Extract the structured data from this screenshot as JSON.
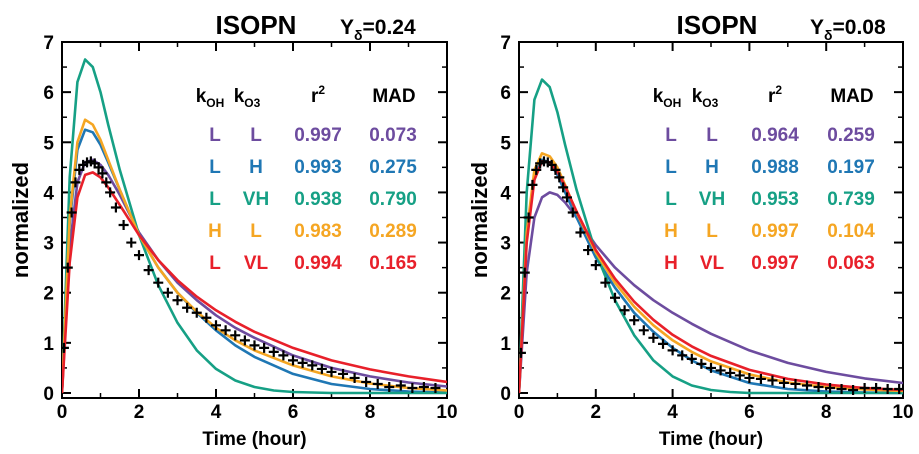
{
  "colors": {
    "purple": "#6d4c9f",
    "blue": "#1f77b4",
    "green": "#16a085",
    "orange": "#f5a623",
    "red": "#e8202a",
    "observed": "#000000"
  },
  "table_headers": {
    "koh": "k",
    "koh_sub": "OH",
    "ko3": "k",
    "ko3_sub": "O3",
    "r2": "r",
    "r2_sup": "2",
    "mad": "MAD"
  },
  "chart_data": [
    {
      "type": "line",
      "title": "ISOPN",
      "annotation": {
        "main": "Y",
        "sub": "δ",
        "value": "=0.24"
      },
      "xlabel": "Time (hour)",
      "ylabel": "normalized",
      "xlim": [
        0,
        10
      ],
      "ylim": [
        -0.1,
        7
      ],
      "x_ticks": [
        "0",
        "2",
        "4",
        "6",
        "8",
        "10"
      ],
      "y_ticks": [
        "0",
        "1",
        "2",
        "3",
        "4",
        "5",
        "6",
        "7"
      ],
      "observed_marker": "+",
      "observed": {
        "x": [
          0.05,
          0.15,
          0.25,
          0.35,
          0.45,
          0.55,
          0.65,
          0.75,
          0.85,
          0.95,
          1.05,
          1.15,
          1.25,
          1.4,
          1.6,
          1.8,
          2.0,
          2.25,
          2.5,
          2.75,
          3.0,
          3.25,
          3.5,
          3.75,
          4.0,
          4.25,
          4.5,
          4.75,
          5.0,
          5.25,
          5.5,
          5.75,
          6.0,
          6.25,
          6.5,
          6.75,
          7.0,
          7.3,
          7.6,
          7.9,
          8.2,
          8.5,
          8.8,
          9.1,
          9.4,
          9.7
        ],
        "y": [
          0.9,
          2.5,
          3.6,
          4.2,
          4.45,
          4.55,
          4.6,
          4.62,
          4.58,
          4.5,
          4.38,
          4.2,
          4.0,
          3.7,
          3.35,
          3.0,
          2.75,
          2.45,
          2.2,
          2.0,
          1.85,
          1.7,
          1.6,
          1.5,
          1.35,
          1.25,
          1.15,
          1.05,
          0.95,
          0.9,
          0.82,
          0.75,
          0.65,
          0.6,
          0.55,
          0.48,
          0.42,
          0.38,
          0.3,
          0.22,
          0.18,
          0.12,
          0.15,
          0.1,
          0.12,
          0.1
        ]
      },
      "series": [
        {
          "name": "L L",
          "color_key": "purple",
          "koh": "L",
          "ko3": "L",
          "r2": "0.997",
          "mad": "0.073",
          "x": [
            0,
            0.2,
            0.4,
            0.6,
            0.8,
            1.0,
            1.2,
            1.5,
            2.0,
            2.5,
            3.0,
            3.5,
            4.0,
            4.5,
            5.0,
            6.0,
            7.0,
            8.0,
            9.0,
            10.0
          ],
          "y": [
            0,
            2.9,
            4.2,
            4.6,
            4.65,
            4.55,
            4.35,
            3.95,
            3.2,
            2.65,
            2.2,
            1.85,
            1.55,
            1.3,
            1.1,
            0.75,
            0.5,
            0.33,
            0.21,
            0.13
          ]
        },
        {
          "name": "L H",
          "color_key": "blue",
          "koh": "L",
          "ko3": "H",
          "r2": "0.993",
          "mad": "0.275",
          "x": [
            0,
            0.2,
            0.4,
            0.6,
            0.8,
            1.0,
            1.2,
            1.5,
            2.0,
            2.5,
            3.0,
            3.5,
            4.0,
            4.5,
            5.0,
            6.0,
            7.0,
            8.0,
            9.0,
            10.0
          ],
          "y": [
            0,
            3.4,
            4.85,
            5.25,
            5.2,
            4.95,
            4.6,
            4.05,
            3.15,
            2.5,
            2.0,
            1.6,
            1.25,
            0.95,
            0.72,
            0.38,
            0.18,
            0.08,
            0.03,
            0.01
          ]
        },
        {
          "name": "L VH",
          "color_key": "green",
          "koh": "L",
          "ko3": "VH",
          "r2": "0.938",
          "mad": "0.790",
          "x": [
            0,
            0.2,
            0.4,
            0.6,
            0.8,
            1.0,
            1.2,
            1.5,
            2.0,
            2.5,
            3.0,
            3.5,
            4.0,
            4.5,
            5.0,
            5.5,
            6.0,
            7.0,
            8.0,
            10.0
          ],
          "y": [
            0,
            4.3,
            6.2,
            6.65,
            6.5,
            6.0,
            5.35,
            4.45,
            3.15,
            2.15,
            1.4,
            0.85,
            0.48,
            0.25,
            0.12,
            0.05,
            0.02,
            0.0,
            0.0,
            0.0
          ]
        },
        {
          "name": "H L",
          "color_key": "orange",
          "koh": "H",
          "ko3": "L",
          "r2": "0.983",
          "mad": "0.289",
          "x": [
            0,
            0.2,
            0.4,
            0.6,
            0.8,
            1.0,
            1.2,
            1.5,
            2.0,
            2.5,
            3.0,
            3.5,
            4.0,
            4.5,
            5.0,
            6.0,
            7.0,
            8.0,
            9.0,
            10.0
          ],
          "y": [
            0,
            3.5,
            5.0,
            5.45,
            5.35,
            5.05,
            4.65,
            4.05,
            3.15,
            2.5,
            2.0,
            1.62,
            1.3,
            1.05,
            0.85,
            0.55,
            0.33,
            0.19,
            0.1,
            0.05
          ]
        },
        {
          "name": "L VL",
          "color_key": "red",
          "koh": "L",
          "ko3": "VL",
          "r2": "0.994",
          "mad": "0.165",
          "x": [
            0,
            0.2,
            0.4,
            0.6,
            0.8,
            1.0,
            1.2,
            1.5,
            2.0,
            2.5,
            3.0,
            3.5,
            4.0,
            4.5,
            5.0,
            6.0,
            7.0,
            8.0,
            9.0,
            10.0
          ],
          "y": [
            0,
            2.6,
            3.9,
            4.35,
            4.4,
            4.3,
            4.1,
            3.75,
            3.15,
            2.65,
            2.25,
            1.92,
            1.65,
            1.42,
            1.22,
            0.9,
            0.65,
            0.47,
            0.33,
            0.22
          ]
        }
      ]
    },
    {
      "type": "line",
      "title": "ISOPN",
      "annotation": {
        "main": "Y",
        "sub": "δ",
        "value": "=0.08"
      },
      "xlabel": "Time (hour)",
      "ylabel": "normalized",
      "xlim": [
        0,
        10
      ],
      "ylim": [
        -0.1,
        7
      ],
      "x_ticks": [
        "0",
        "2",
        "4",
        "6",
        "8",
        "10"
      ],
      "y_ticks": [
        "0",
        "1",
        "2",
        "3",
        "4",
        "5",
        "6",
        "7"
      ],
      "observed_marker": "+",
      "observed": {
        "x": [
          0.05,
          0.15,
          0.25,
          0.35,
          0.45,
          0.55,
          0.65,
          0.75,
          0.85,
          0.95,
          1.05,
          1.15,
          1.25,
          1.4,
          1.6,
          1.8,
          2.0,
          2.25,
          2.5,
          2.75,
          3.0,
          3.25,
          3.5,
          3.75,
          4.0,
          4.25,
          4.5,
          4.75,
          5.0,
          5.25,
          5.5,
          5.75,
          6.0,
          6.3,
          6.6,
          6.9,
          7.2,
          7.5,
          7.8,
          8.1,
          8.4,
          8.7,
          9.0,
          9.3,
          9.6,
          9.9
        ],
        "y": [
          0.8,
          2.4,
          3.5,
          4.15,
          4.45,
          4.58,
          4.62,
          4.6,
          4.55,
          4.45,
          4.3,
          4.1,
          3.9,
          3.6,
          3.2,
          2.85,
          2.55,
          2.2,
          1.9,
          1.65,
          1.45,
          1.25,
          1.1,
          0.98,
          0.85,
          0.75,
          0.68,
          0.58,
          0.5,
          0.45,
          0.4,
          0.35,
          0.3,
          0.28,
          0.25,
          0.2,
          0.18,
          0.15,
          0.12,
          0.1,
          0.08,
          0.06,
          0.1,
          0.1,
          0.08,
          0.08
        ]
      },
      "series": [
        {
          "name": "L L",
          "color_key": "purple",
          "koh": "L",
          "ko3": "L",
          "r2": "0.964",
          "mad": "0.259",
          "x": [
            0,
            0.2,
            0.4,
            0.6,
            0.8,
            1.0,
            1.2,
            1.5,
            2.0,
            2.5,
            3.0,
            3.5,
            4.0,
            4.5,
            5.0,
            6.0,
            7.0,
            8.0,
            9.0,
            10.0
          ],
          "y": [
            0,
            2.4,
            3.5,
            3.9,
            4.0,
            3.95,
            3.8,
            3.5,
            2.95,
            2.5,
            2.15,
            1.85,
            1.6,
            1.38,
            1.18,
            0.85,
            0.6,
            0.42,
            0.29,
            0.2
          ]
        },
        {
          "name": "L H",
          "color_key": "blue",
          "koh": "L",
          "ko3": "H",
          "r2": "0.988",
          "mad": "0.197",
          "x": [
            0,
            0.2,
            0.4,
            0.6,
            0.8,
            1.0,
            1.2,
            1.5,
            2.0,
            2.5,
            3.0,
            3.5,
            4.0,
            4.5,
            5.0,
            6.0,
            7.0,
            8.0,
            9.0,
            10.0
          ],
          "y": [
            0,
            3.1,
            4.35,
            4.65,
            4.6,
            4.35,
            4.0,
            3.5,
            2.7,
            2.1,
            1.6,
            1.22,
            0.9,
            0.65,
            0.45,
            0.2,
            0.08,
            0.03,
            0.01,
            0.0
          ]
        },
        {
          "name": "L VH",
          "color_key": "green",
          "koh": "L",
          "ko3": "VH",
          "r2": "0.953",
          "mad": "0.739",
          "x": [
            0,
            0.2,
            0.4,
            0.6,
            0.8,
            1.0,
            1.2,
            1.5,
            2.0,
            2.5,
            3.0,
            3.5,
            4.0,
            4.5,
            5.0,
            5.5,
            6.0,
            7.0,
            8.0,
            10.0
          ],
          "y": [
            0,
            4.0,
            5.85,
            6.25,
            6.1,
            5.6,
            4.95,
            4.05,
            2.8,
            1.85,
            1.15,
            0.65,
            0.33,
            0.15,
            0.06,
            0.02,
            0.0,
            0.0,
            0.0,
            0.0
          ]
        },
        {
          "name": "H L",
          "color_key": "orange",
          "koh": "H",
          "ko3": "L",
          "r2": "0.997",
          "mad": "0.104",
          "x": [
            0,
            0.2,
            0.4,
            0.6,
            0.8,
            1.0,
            1.2,
            1.5,
            2.0,
            2.5,
            3.0,
            3.5,
            4.0,
            4.5,
            5.0,
            6.0,
            7.0,
            8.0,
            9.0,
            10.0
          ],
          "y": [
            0,
            3.2,
            4.45,
            4.78,
            4.72,
            4.5,
            4.15,
            3.6,
            2.8,
            2.2,
            1.72,
            1.35,
            1.05,
            0.82,
            0.63,
            0.37,
            0.21,
            0.12,
            0.07,
            0.04
          ]
        },
        {
          "name": "H VL",
          "color_key": "red",
          "koh": "H",
          "ko3": "VL",
          "r2": "0.997",
          "mad": "0.063",
          "x": [
            0,
            0.2,
            0.4,
            0.6,
            0.8,
            1.0,
            1.2,
            1.5,
            2.0,
            2.5,
            3.0,
            3.5,
            4.0,
            4.5,
            5.0,
            6.0,
            7.0,
            8.0,
            9.0,
            10.0
          ],
          "y": [
            0,
            3.0,
            4.25,
            4.62,
            4.6,
            4.42,
            4.12,
            3.62,
            2.85,
            2.28,
            1.82,
            1.46,
            1.16,
            0.93,
            0.74,
            0.46,
            0.28,
            0.17,
            0.1,
            0.06
          ]
        }
      ]
    }
  ]
}
